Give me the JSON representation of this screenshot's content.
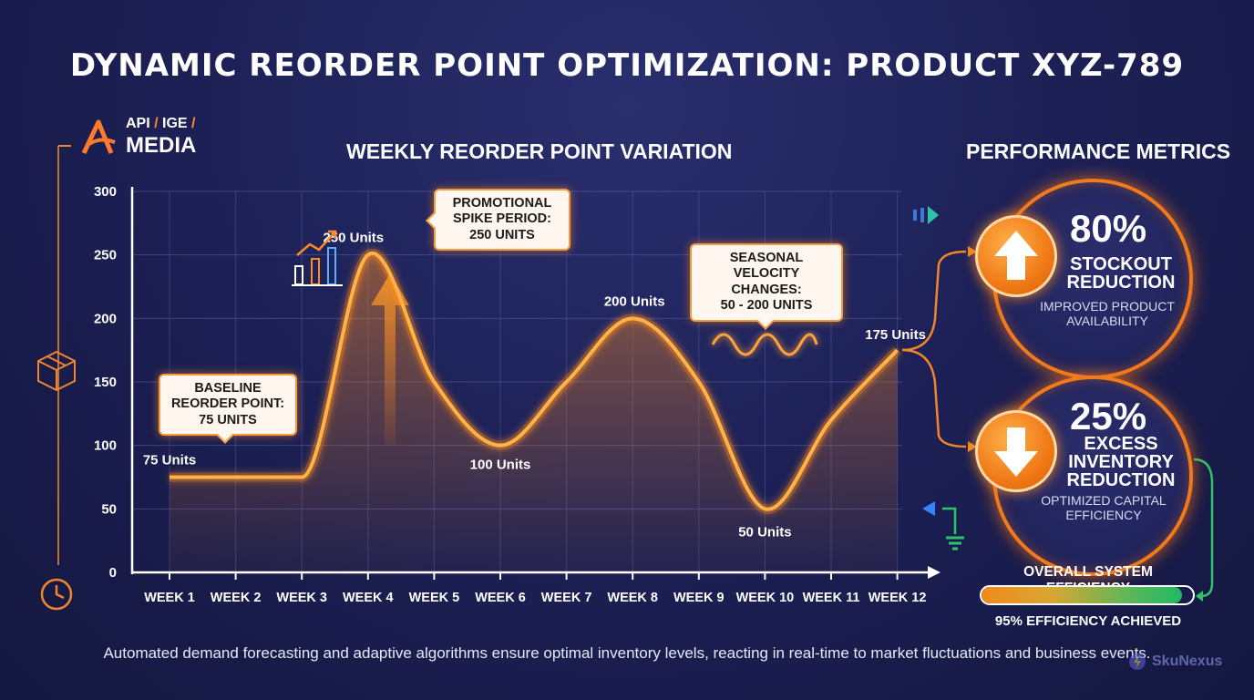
{
  "title": "DYNAMIC REORDER POINT OPTIMIZATION: PRODUCT XYZ-789",
  "logo": {
    "line1a": "API",
    "line1b": "IGE",
    "line2": "MEDIA"
  },
  "chart_data": {
    "type": "line",
    "title": "WEEKLY REORDER POINT VARIATION",
    "categories": [
      "WEEK 1",
      "WEEK 2",
      "WEEK 3",
      "WEEK 4",
      "WEEK 5",
      "WEEK 6",
      "WEEK 7",
      "WEEK 8",
      "WEEK 9",
      "WEEK 10",
      "WEEK 11",
      "WEEK 12"
    ],
    "values": [
      75,
      75,
      75,
      250,
      150,
      100,
      150,
      200,
      150,
      50,
      120,
      175
    ],
    "yticks": [
      0,
      50,
      100,
      150,
      200,
      250,
      300
    ],
    "ylim": [
      0,
      300
    ],
    "grid": true,
    "line_color": "#ffb347",
    "fill_color": "#d97a2a",
    "data_labels": [
      {
        "week": 1,
        "value": 75,
        "text": "75 Units"
      },
      {
        "week": 4,
        "value": 250,
        "text": "250 Units"
      },
      {
        "week": 6,
        "value": 100,
        "text": "100 Units"
      },
      {
        "week": 8,
        "value": 200,
        "text": "200 Units"
      },
      {
        "week": 10,
        "value": 50,
        "text": "50 Units"
      },
      {
        "week": 12,
        "value": 175,
        "text": "175 Units"
      }
    ],
    "annotations": {
      "baseline": [
        "BASELINE",
        "REORDER POINT:",
        "75 UNITS"
      ],
      "promo": [
        "PROMOTIONAL",
        "SPIKE PERIOD:",
        "250 UNITS"
      ],
      "seasonal": [
        "SEASONAL",
        "VELOCITY CHANGES:",
        "50 - 200 UNITS"
      ]
    }
  },
  "performance": {
    "title": "PERFORMANCE METRICS",
    "metrics": [
      {
        "value": "80%",
        "label1": "STOCKOUT",
        "label2": "REDUCTION",
        "desc1": "IMPROVED PRODUCT",
        "desc2": "AVAILABILITY",
        "direction": "up"
      },
      {
        "value": "25%",
        "label1": "EXCESS",
        "label2": "INVENTORY",
        "label3": "REDUCTION",
        "desc1": "OPTIMIZED CAPITAL",
        "desc2": "EFFICIENCY",
        "direction": "down"
      }
    ],
    "efficiency_title": "OVERALL SYSTEM EFFICIENCY",
    "efficiency_value": 95,
    "efficiency_note": "95% EFFICIENCY ACHIEVED"
  },
  "footer": "Automated demand forecasting and adaptive algorithms ensure optimal inventory levels, reacting in real-time to market fluctuations and business events.",
  "brand": "SkuNexus",
  "colors": {
    "accent": "#f07a1c",
    "background": "#1d2157",
    "green": "#22b864"
  }
}
